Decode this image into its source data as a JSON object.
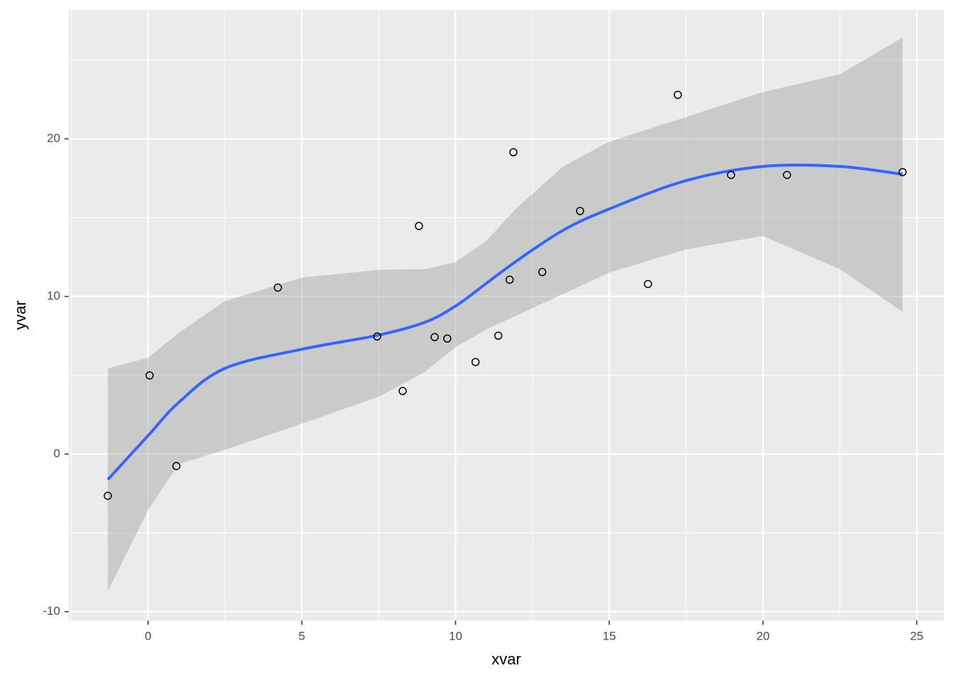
{
  "chart_data": {
    "type": "scatter",
    "x_label": "xvar",
    "y_label": "yvar",
    "x": [
      -1.31,
      0.05,
      0.92,
      4.22,
      7.45,
      8.28,
      8.81,
      9.32,
      9.73,
      10.65,
      11.39,
      11.76,
      11.88,
      12.82,
      14.05,
      16.26,
      17.23,
      18.96,
      20.78,
      24.54
    ],
    "y": [
      -2.65,
      4.99,
      -0.76,
      10.56,
      7.46,
      4.0,
      14.47,
      7.42,
      7.33,
      5.84,
      7.51,
      11.06,
      19.15,
      11.55,
      15.42,
      10.79,
      22.79,
      17.71,
      17.71,
      17.89
    ],
    "point_color": "#000000",
    "smooth": {
      "color": "#3366ff",
      "band_color": "#999999",
      "x": [
        -1.31,
        0,
        1,
        2.5,
        5,
        7.5,
        9,
        10,
        11,
        12,
        13.5,
        15,
        17.5,
        20,
        22.5,
        24.54
      ],
      "y": [
        -1.62,
        1.17,
        3.28,
        5.44,
        6.65,
        7.55,
        8.36,
        9.39,
        10.83,
        12.27,
        14.2,
        15.55,
        17.35,
        18.25,
        18.25,
        17.75
      ],
      "ymin": [
        -8.72,
        -3.55,
        -0.63,
        0.27,
        1.93,
        3.64,
        5.21,
        6.79,
        7.91,
        8.81,
        10.16,
        11.51,
        12.99,
        13.84,
        11.73,
        9.03
      ],
      "ymax": [
        5.44,
        6.11,
        7.69,
        9.71,
        11.19,
        11.69,
        11.73,
        12.18,
        13.53,
        15.64,
        18.25,
        19.82,
        21.39,
        22.97,
        24.09,
        26.43
      ]
    },
    "xlim": [
      -2.58,
      25.88
    ],
    "ylim": [
      -10.56,
      28.18
    ],
    "xticks": [
      0,
      5,
      10,
      15,
      20,
      25
    ],
    "yticks": [
      -10,
      0,
      10,
      20
    ],
    "grid": true
  }
}
